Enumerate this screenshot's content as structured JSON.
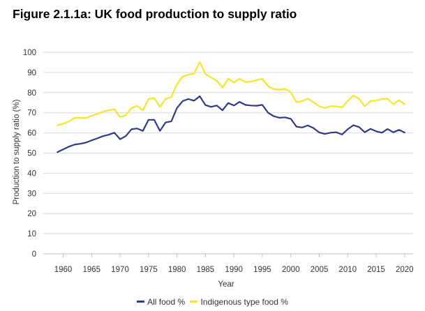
{
  "title": "Figure 2.1.1a: UK food production to supply ratio",
  "colors": {
    "all": "#2e3a87",
    "indigenous": "#f5e52a",
    "grid": "#d9d9d9",
    "axis": "#bfbfbf"
  },
  "chart_data": {
    "type": "line",
    "title": "Figure 2.1.1a: UK food production to supply ratio",
    "xlabel": "Year",
    "ylabel": "Production to supply ratio (%)",
    "ylim": [
      0,
      100
    ],
    "yticks": [
      0,
      10,
      20,
      30,
      40,
      50,
      60,
      70,
      80,
      90,
      100
    ],
    "xlim": [
      1956.5,
      2021.5
    ],
    "xticks": [
      1960,
      1965,
      1970,
      1975,
      1980,
      1985,
      1990,
      1995,
      2000,
      2005,
      2010,
      2015,
      2020
    ],
    "grid": true,
    "legend": "bottom",
    "x": [
      1959,
      1960,
      1961,
      1962,
      1963,
      1964,
      1965,
      1966,
      1967,
      1968,
      1969,
      1970,
      1971,
      1972,
      1973,
      1974,
      1975,
      1976,
      1977,
      1978,
      1979,
      1980,
      1981,
      1982,
      1983,
      1984,
      1985,
      1986,
      1987,
      1988,
      1989,
      1990,
      1991,
      1992,
      1993,
      1994,
      1995,
      1996,
      1997,
      1998,
      1999,
      2000,
      2001,
      2002,
      2003,
      2004,
      2005,
      2006,
      2007,
      2008,
      2009,
      2010,
      2011,
      2012,
      2013,
      2014,
      2015,
      2016,
      2017,
      2018,
      2019,
      2020
    ],
    "series": [
      {
        "name": "All food %",
        "key": "all",
        "values": [
          50.5,
          51.8,
          53.2,
          54.2,
          54.6,
          55.2,
          56.3,
          57.3,
          58.4,
          59.1,
          60.1,
          56.9,
          58.4,
          61.8,
          62.2,
          61.0,
          66.5,
          66.5,
          61.0,
          65.2,
          65.7,
          72.4,
          75.8,
          76.8,
          76.0,
          78.2,
          73.8,
          72.9,
          73.6,
          71.2,
          74.8,
          73.6,
          75.4,
          73.9,
          73.6,
          73.5,
          73.9,
          70.0,
          68.3,
          67.5,
          67.7,
          67.0,
          63.1,
          62.7,
          63.7,
          62.4,
          60.2,
          59.5,
          60.1,
          60.3,
          59.2,
          61.8,
          63.8,
          62.9,
          60.3,
          62.0,
          60.8,
          60.1,
          61.9,
          60.3,
          61.5,
          60.2
        ]
      },
      {
        "name": "Indigenous type food %",
        "key": "indigenous",
        "values": [
          63.8,
          64.6,
          65.6,
          67.5,
          67.4,
          67.4,
          68.5,
          69.4,
          70.6,
          71.2,
          71.8,
          67.8,
          68.8,
          72.3,
          73.4,
          71.2,
          76.8,
          77.3,
          72.9,
          76.9,
          77.8,
          84.2,
          88.0,
          88.9,
          89.4,
          95.2,
          89.2,
          87.5,
          85.8,
          82.5,
          86.9,
          85.0,
          86.8,
          85.3,
          85.5,
          86.2,
          86.9,
          83.2,
          81.7,
          81.5,
          81.8,
          80.2,
          75.2,
          75.8,
          77.0,
          75.2,
          73.2,
          72.4,
          73.3,
          73.2,
          72.7,
          75.8,
          78.5,
          77.0,
          73.2,
          75.8,
          76.0,
          76.8,
          77.0,
          74.3,
          76.2,
          74.3
        ]
      }
    ]
  }
}
